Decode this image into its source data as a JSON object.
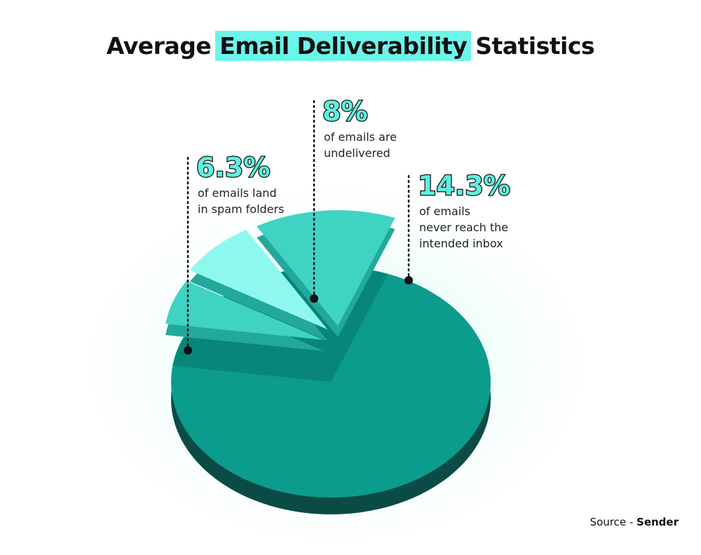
{
  "chart_data": {
    "type": "pie",
    "title_start": "Average",
    "title_highlight": "Email Deliverability",
    "title_end": "Statistics",
    "values": [
      6.3,
      8,
      14.3
    ],
    "value_labels": [
      "6.3%",
      "8%",
      "14.3%"
    ],
    "descriptions": [
      [
        "of emails land",
        "in spam folders"
      ],
      [
        "of emails are",
        "undelivered"
      ],
      [
        "of emails",
        "never reach the",
        "intended inbox"
      ]
    ],
    "colors": [
      "#3fd3c4",
      "#8ff8ee",
      "#3fd3c4"
    ],
    "base_color": "#0b9c8d",
    "side_color": "#0b4b45",
    "source_prefix": "Source -",
    "source": "Sender"
  }
}
